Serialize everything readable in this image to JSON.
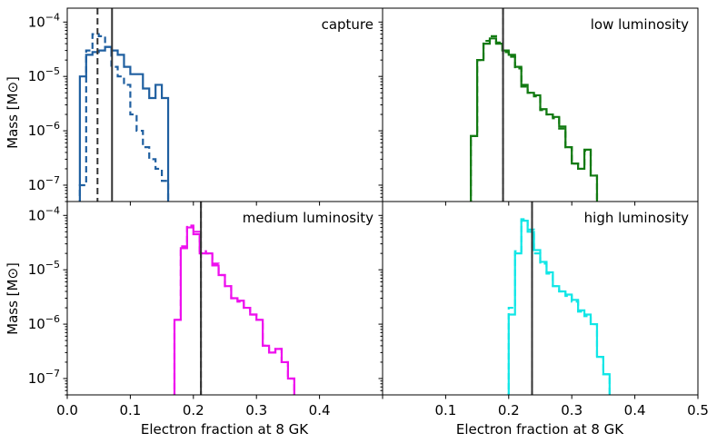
{
  "chart_data": {
    "type": "histogram-grid",
    "layout": "2x2",
    "shared_x": {
      "label": "Electron fraction at 8 GK",
      "xlim": [
        0.0,
        0.5
      ],
      "ticks": [
        0.0,
        0.1,
        0.2,
        0.3,
        0.4,
        0.5
      ],
      "tick_labels": [
        "0.0",
        "0.1",
        "0.2",
        "0.3",
        "0.4",
        "0.5"
      ]
    },
    "shared_y": {
      "label": "Mass [M⊙]",
      "scale": "log",
      "ylim": [
        5e-08,
        0.00018
      ],
      "ticks": [
        1e-07,
        1e-06,
        1e-05,
        0.0001
      ],
      "tick_bases": [
        "10",
        "10",
        "10",
        "10"
      ],
      "tick_exponents": [
        "−7",
        "−6",
        "−5",
        "−4"
      ]
    },
    "panels": [
      {
        "title": "capture",
        "color": "#1f5fa0",
        "bins": [
          0.02,
          0.03,
          0.04,
          0.05,
          0.06,
          0.07,
          0.08,
          0.09,
          0.1,
          0.11,
          0.12,
          0.13,
          0.14,
          0.15,
          0.16
        ],
        "solid": [
          1e-05,
          2.5e-05,
          2.8e-05,
          3e-05,
          3.5e-05,
          3e-05,
          2.5e-05,
          1.5e-05,
          1.1e-05,
          1.1e-05,
          6e-06,
          4e-06,
          7e-06,
          4e-06
        ],
        "dashed": [
          1e-07,
          3e-05,
          6e-05,
          5.5e-05,
          3.5e-05,
          1.5e-05,
          1e-05,
          7e-06,
          2e-06,
          1e-06,
          5e-07,
          3e-07,
          2e-07,
          1.2e-07
        ],
        "vline_solid": 0.071,
        "vline_dashed": 0.048
      },
      {
        "title": "low luminosity",
        "color": "#127a12",
        "bins": [
          0.14,
          0.15,
          0.16,
          0.17,
          0.18,
          0.19,
          0.2,
          0.21,
          0.22,
          0.23,
          0.24,
          0.25,
          0.26,
          0.27,
          0.28,
          0.29,
          0.3,
          0.31,
          0.32,
          0.33,
          0.34
        ],
        "solid": [
          8e-07,
          2e-05,
          4e-05,
          5e-05,
          4e-05,
          3e-05,
          2.5e-05,
          1.5e-05,
          7e-06,
          5e-06,
          4.5e-06,
          2.5e-06,
          2e-06,
          1.8e-06,
          1.2e-06,
          5e-07,
          2.5e-07,
          2e-07,
          4.5e-07,
          1.5e-07
        ],
        "dashed": [
          8e-07,
          2e-05,
          4.5e-05,
          5.5e-05,
          4.2e-05,
          2.8e-05,
          2.3e-05,
          1.4e-05,
          6.5e-06,
          5e-06,
          4.3e-06,
          2.4e-06,
          2e-06,
          1.7e-06,
          1.1e-06,
          5e-07,
          2.5e-07,
          2e-07,
          4.3e-07,
          1.5e-07
        ],
        "vline_solid": 0.191,
        "vline_dashed": 0.191
      },
      {
        "title": "medium luminosity",
        "color": "#ee11ee",
        "bins": [
          0.17,
          0.18,
          0.19,
          0.2,
          0.21,
          0.22,
          0.23,
          0.24,
          0.25,
          0.26,
          0.27,
          0.28,
          0.29,
          0.3,
          0.31,
          0.32,
          0.33,
          0.34,
          0.35,
          0.36
        ],
        "solid": [
          1.2e-06,
          2.5e-05,
          6e-05,
          4.5e-05,
          2e-05,
          2e-05,
          1.2e-05,
          8e-06,
          5e-06,
          3e-06,
          2.7e-06,
          2e-06,
          1.5e-06,
          1.2e-06,
          4e-07,
          3e-07,
          3.5e-07,
          2e-07,
          1e-07
        ],
        "dashed": [
          1.2e-06,
          2.7e-05,
          6.5e-05,
          5e-05,
          2.2e-05,
          2e-05,
          1.3e-05,
          8e-06,
          5e-06,
          3e-06,
          2.6e-06,
          2e-06,
          1.5e-06,
          1.2e-06,
          4e-07,
          3e-07,
          3.5e-07,
          2e-07,
          1e-07
        ],
        "vline_solid": 0.212,
        "vline_dashed": 0.212
      },
      {
        "title": "high luminosity",
        "color": "#11e6e6",
        "bins": [
          0.2,
          0.21,
          0.22,
          0.23,
          0.24,
          0.25,
          0.26,
          0.27,
          0.28,
          0.29,
          0.3,
          0.31,
          0.32,
          0.33,
          0.34,
          0.35,
          0.36
        ],
        "solid": [
          1.5e-06,
          2e-05,
          8e-05,
          5e-05,
          2.3e-05,
          1.4e-05,
          9e-06,
          5e-06,
          4e-06,
          3.5e-06,
          2.8e-06,
          1.8e-06,
          1.5e-06,
          1e-06,
          2.5e-07,
          1.2e-07
        ],
        "dashed": [
          2e-06,
          2.2e-05,
          8.5e-05,
          5.5e-05,
          2e-05,
          1.3e-05,
          8.5e-06,
          5e-06,
          4e-06,
          3.3e-06,
          2.6e-06,
          1.7e-06,
          1.4e-06,
          1e-06,
          2.5e-07,
          1.2e-07
        ],
        "vline_solid": 0.237,
        "vline_dashed": 0.237
      }
    ]
  }
}
